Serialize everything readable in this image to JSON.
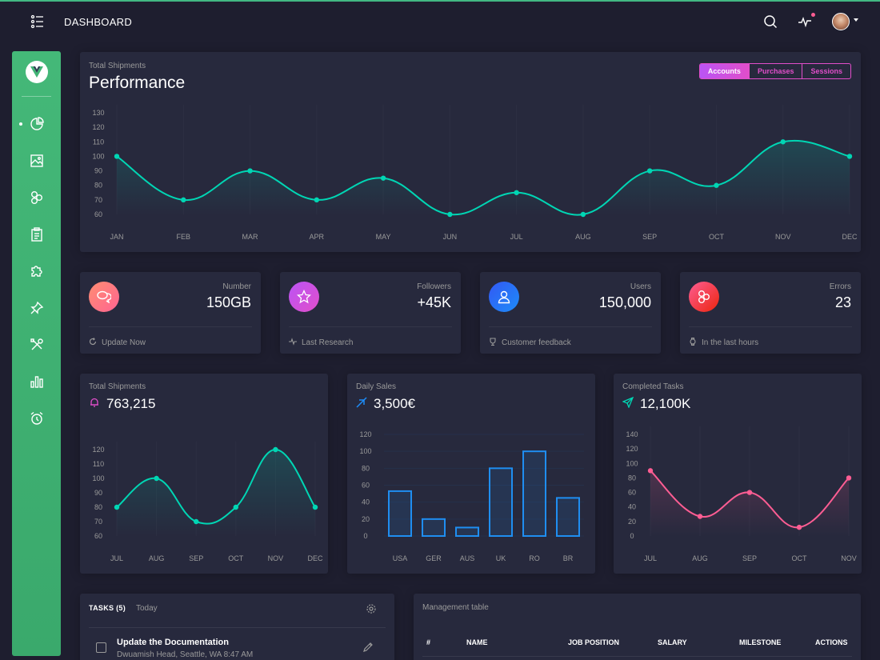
{
  "topbar": {
    "title": "DASHBOARD"
  },
  "sidebar": {
    "items": [
      {
        "icon": "pie-chart-icon"
      },
      {
        "icon": "image-icon"
      },
      {
        "icon": "atom-icon"
      },
      {
        "icon": "clipboard-icon"
      },
      {
        "icon": "puzzle-icon"
      },
      {
        "icon": "pin-icon"
      },
      {
        "icon": "tools-icon"
      },
      {
        "icon": "bar-chart-icon"
      },
      {
        "icon": "alarm-icon"
      }
    ]
  },
  "performance": {
    "category": "Total Shipments",
    "title": "Performance",
    "tabs": [
      "Accounts",
      "Purchases",
      "Sessions"
    ],
    "active_tab": "Accounts"
  },
  "stats": [
    {
      "label": "Number",
      "value": "150GB",
      "footer": "Update Now",
      "color": "#fd6e70"
    },
    {
      "label": "Followers",
      "value": "+45K",
      "footer": "Last Research",
      "color": "#e14eca"
    },
    {
      "label": "Users",
      "value": "150,000",
      "footer": "Customer feedback",
      "color": "#1d8cf8"
    },
    {
      "label": "Errors",
      "value": "23",
      "footer": "In the last hours",
      "color": "#fd3a55"
    }
  ],
  "small_cards": [
    {
      "category": "Total Shipments",
      "value": "763,215"
    },
    {
      "category": "Daily Sales",
      "value": "3,500€"
    },
    {
      "category": "Completed Tasks",
      "value": "12,100K"
    }
  ],
  "tasks": {
    "title": "TASKS (5)",
    "filter": "Today",
    "items": [
      {
        "title": "Update the Documentation",
        "subtitle": "Dwuamish Head, Seattle, WA 8:47 AM"
      }
    ]
  },
  "table": {
    "title": "Management table",
    "columns": [
      "#",
      "NAME",
      "JOB POSITION",
      "SALARY",
      "MILESTONE",
      "ACTIONS"
    ]
  },
  "chart_data": [
    {
      "type": "line",
      "title": "Performance",
      "categories": [
        "JAN",
        "FEB",
        "MAR",
        "APR",
        "MAY",
        "JUN",
        "JUL",
        "AUG",
        "SEP",
        "OCT",
        "NOV",
        "DEC"
      ],
      "values": [
        100,
        70,
        90,
        70,
        85,
        60,
        75,
        60,
        90,
        80,
        110,
        100
      ],
      "yticks": [
        60,
        70,
        80,
        90,
        100,
        110,
        120,
        130
      ],
      "ylim": [
        60,
        130
      ],
      "color": "#00d6b4"
    },
    {
      "type": "line",
      "title": "Total Shipments",
      "categories": [
        "JUL",
        "AUG",
        "SEP",
        "OCT",
        "NOV",
        "DEC"
      ],
      "values": [
        80,
        100,
        70,
        80,
        120,
        80
      ],
      "yticks": [
        60,
        70,
        80,
        90,
        100,
        110,
        120
      ],
      "ylim": [
        60,
        120
      ],
      "color": "#00d6b4"
    },
    {
      "type": "bar",
      "title": "Daily Sales",
      "categories": [
        "USA",
        "GER",
        "AUS",
        "UK",
        "RO",
        "BR"
      ],
      "values": [
        53,
        20,
        10,
        80,
        100,
        45
      ],
      "yticks": [
        0,
        20,
        40,
        60,
        80,
        100,
        120
      ],
      "ylim": [
        0,
        120
      ],
      "color": "#1f8ef1"
    },
    {
      "type": "line",
      "title": "Completed Tasks",
      "categories": [
        "JUL",
        "AUG",
        "SEP",
        "OCT",
        "NOV"
      ],
      "values": [
        90,
        27,
        60,
        12,
        80
      ],
      "yticks": [
        0,
        20,
        40,
        60,
        80,
        100,
        120,
        140
      ],
      "ylim": [
        0,
        140
      ],
      "color": "#fd5d93"
    }
  ]
}
